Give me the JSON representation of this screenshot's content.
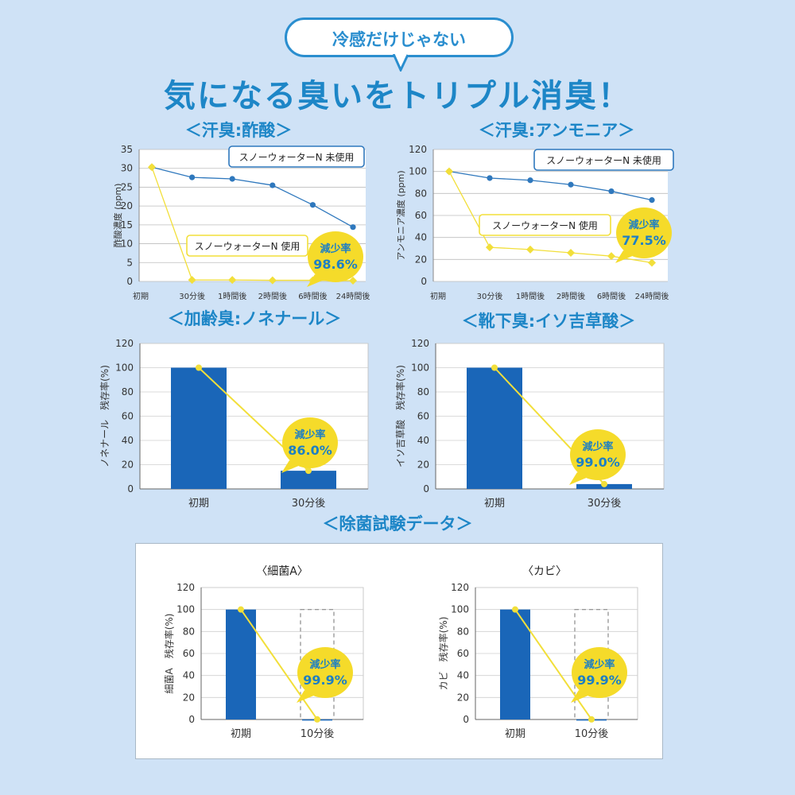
{
  "header": {
    "bubble_text": "冷感だけじゃない",
    "headline": "気になる臭いをトリプル消臭！"
  },
  "sections": {
    "acetic": "＜汗臭:酢酸＞",
    "ammonia": "＜汗臭:アンモニア＞",
    "nonenal": "＜加齢臭:ノネナール＞",
    "isovaleric": "＜靴下臭:イソ吉草酸＞",
    "bacteria_test": "＜除菌試験データ＞"
  },
  "colors": {
    "blue_bar": "#1a66b8",
    "blue_line": "#2f78bd",
    "yellow": "#f2df3a",
    "badge": "#f5db2a",
    "badge_text": "#1d7fc4",
    "heading": "#1d86c7"
  },
  "chart_data": [
    {
      "type": "line",
      "title": "＜汗臭:酢酸＞",
      "ylabel": "酢酸濃度 (ppm)",
      "ylim": [
        0,
        35
      ],
      "yticks": [
        0,
        5,
        10,
        15,
        20,
        25,
        30,
        35
      ],
      "categories": [
        "初期",
        "30分後",
        "1時間後",
        "2時間後",
        "6時間後",
        "24時間後"
      ],
      "series": [
        {
          "name": "スノーウォーターN 未使用",
          "values": [
            30.3,
            27.6,
            27.2,
            25.5,
            20.3,
            14.4
          ]
        },
        {
          "name": "スノーウォーターN 使用",
          "values": [
            30.3,
            0.4,
            0.4,
            0.3,
            0.3,
            0.2
          ]
        }
      ],
      "badge": {
        "label": "減少率",
        "value": "98.6%"
      }
    },
    {
      "type": "line",
      "title": "＜汗臭:アンモニア＞",
      "ylabel": "アンモニア濃度 (ppm)",
      "ylim": [
        0,
        120
      ],
      "yticks": [
        0,
        20,
        40,
        60,
        80,
        100,
        120
      ],
      "categories": [
        "初期",
        "30分後",
        "1時間後",
        "2時間後",
        "6時間後",
        "24時間後"
      ],
      "series": [
        {
          "name": "スノーウォーターN 未使用",
          "values": [
            100,
            94,
            92,
            88,
            82,
            74
          ]
        },
        {
          "name": "スノーウォーターN 使用",
          "values": [
            100,
            31,
            29,
            26,
            23,
            17
          ]
        }
      ],
      "badge": {
        "label": "減少率",
        "value": "77.5%"
      }
    },
    {
      "type": "bar",
      "title": "＜加齢臭:ノネナール＞",
      "ylabel": "ノネナール　残存率(%)",
      "ylim": [
        0,
        120
      ],
      "yticks": [
        0,
        20,
        40,
        60,
        80,
        100,
        120
      ],
      "categories": [
        "初期",
        "30分後"
      ],
      "values": [
        100,
        15
      ],
      "badge": {
        "label": "減少率",
        "value": "86.0%"
      }
    },
    {
      "type": "bar",
      "title": "＜靴下臭:イソ吉草酸＞",
      "ylabel": "イソ吉草酸　残存率(%)",
      "ylim": [
        0,
        120
      ],
      "yticks": [
        0,
        20,
        40,
        60,
        80,
        100,
        120
      ],
      "categories": [
        "初期",
        "30分後"
      ],
      "values": [
        100,
        4
      ],
      "badge": {
        "label": "減少率",
        "value": "99.0%"
      }
    },
    {
      "type": "bar",
      "title": "〈細菌A〉",
      "ylabel": "細菌A　残存率(%)",
      "ylim": [
        0,
        120
      ],
      "yticks": [
        0,
        20,
        40,
        60,
        80,
        100,
        120
      ],
      "categories": [
        "初期",
        "10分後"
      ],
      "values": [
        100,
        0.1
      ],
      "badge": {
        "label": "減少率",
        "value": "99.9%"
      }
    },
    {
      "type": "bar",
      "title": "〈カビ〉",
      "ylabel": "カビ　残存率(%)",
      "ylim": [
        0,
        120
      ],
      "yticks": [
        0,
        20,
        40,
        60,
        80,
        100,
        120
      ],
      "categories": [
        "初期",
        "10分後"
      ],
      "values": [
        100,
        0.1
      ],
      "badge": {
        "label": "減少率",
        "value": "99.9%"
      }
    }
  ]
}
